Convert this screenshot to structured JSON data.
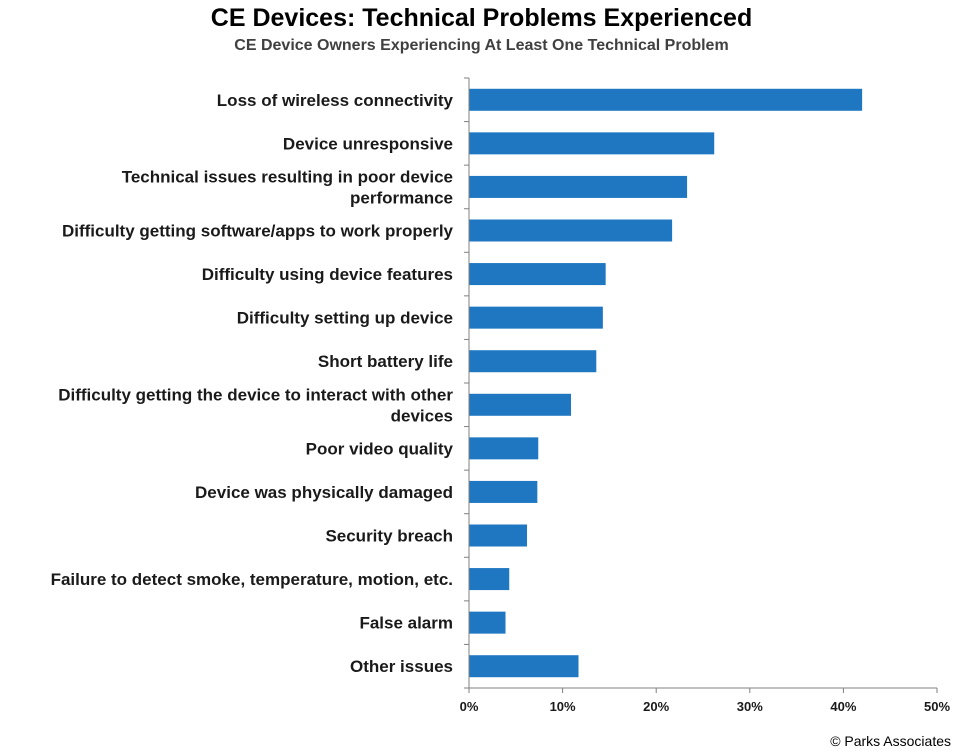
{
  "title": "CE Devices: Technical Problems Experienced",
  "subtitle": "CE Device Owners Experiencing At Least One Technical Problem",
  "credit": "© Parks Associates",
  "chart_data": {
    "type": "bar",
    "orientation": "horizontal",
    "title": "CE Devices: Technical Problems Experienced",
    "subtitle": "CE Device Owners Experiencing At Least One Technical Problem",
    "categories": [
      [
        "Loss of wireless connectivity"
      ],
      [
        "Device unresponsive"
      ],
      [
        "Technical issues resulting in poor device",
        "performance"
      ],
      [
        "Difficulty getting software/apps to work properly"
      ],
      [
        "Difficulty using device features"
      ],
      [
        "Difficulty setting up device"
      ],
      [
        "Short battery life"
      ],
      [
        "Difficulty getting the device to interact with other",
        "devices"
      ],
      [
        "Poor video quality"
      ],
      [
        "Device was physically damaged"
      ],
      [
        "Security breach"
      ],
      [
        "Failure to detect smoke, temperature, motion, etc."
      ],
      [
        "False alarm"
      ],
      [
        "Other issues"
      ]
    ],
    "values": [
      42,
      26.2,
      23.3,
      21.7,
      14.6,
      14.3,
      13.6,
      10.9,
      7.4,
      7.3,
      6.2,
      4.3,
      3.9,
      11.7
    ],
    "xlim": [
      0,
      50
    ],
    "ticks": [
      0,
      10,
      20,
      30,
      40,
      50
    ],
    "tick_labels": [
      "0%",
      "10%",
      "20%",
      "30%",
      "40%",
      "50%"
    ],
    "bar_color": "#1f77c2",
    "grid": false,
    "legend": false
  }
}
